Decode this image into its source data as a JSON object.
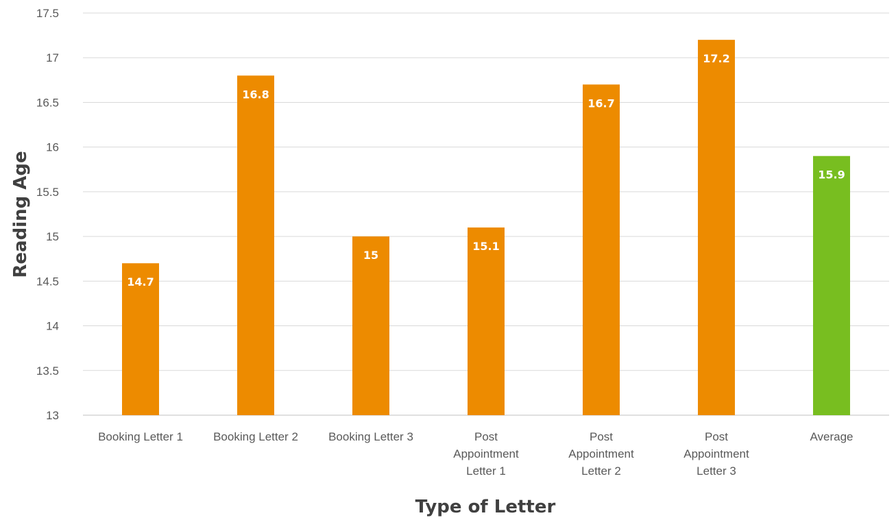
{
  "chart_data": {
    "type": "bar",
    "title": "",
    "xlabel": "Type of Letter",
    "ylabel": "Reading Age",
    "ylim": [
      13,
      17.5
    ],
    "yticks": [
      "13",
      "13.5",
      "14",
      "14.5",
      "15",
      "15.5",
      "16",
      "16.5",
      "17",
      "17.5"
    ],
    "grid": true,
    "legend": "none",
    "categories": [
      [
        "Booking Letter 1"
      ],
      [
        "Booking Letter 2"
      ],
      [
        "Booking Letter 3"
      ],
      [
        "Post",
        "Appointment",
        "Letter 1"
      ],
      [
        "Post",
        "Appointment",
        "Letter 2"
      ],
      [
        "Post",
        "Appointment",
        "Letter 3"
      ],
      [
        "Average"
      ]
    ],
    "values": [
      14.7,
      16.8,
      15,
      15.1,
      16.7,
      17.2,
      15.9
    ],
    "value_labels": [
      "14.7",
      "16.8",
      "15",
      "15.1",
      "16.7",
      "17.2",
      "15.9"
    ],
    "colors": [
      "#ed8b00",
      "#ed8b00",
      "#ed8b00",
      "#ed8b00",
      "#ed8b00",
      "#ed8b00",
      "#78be20"
    ]
  }
}
